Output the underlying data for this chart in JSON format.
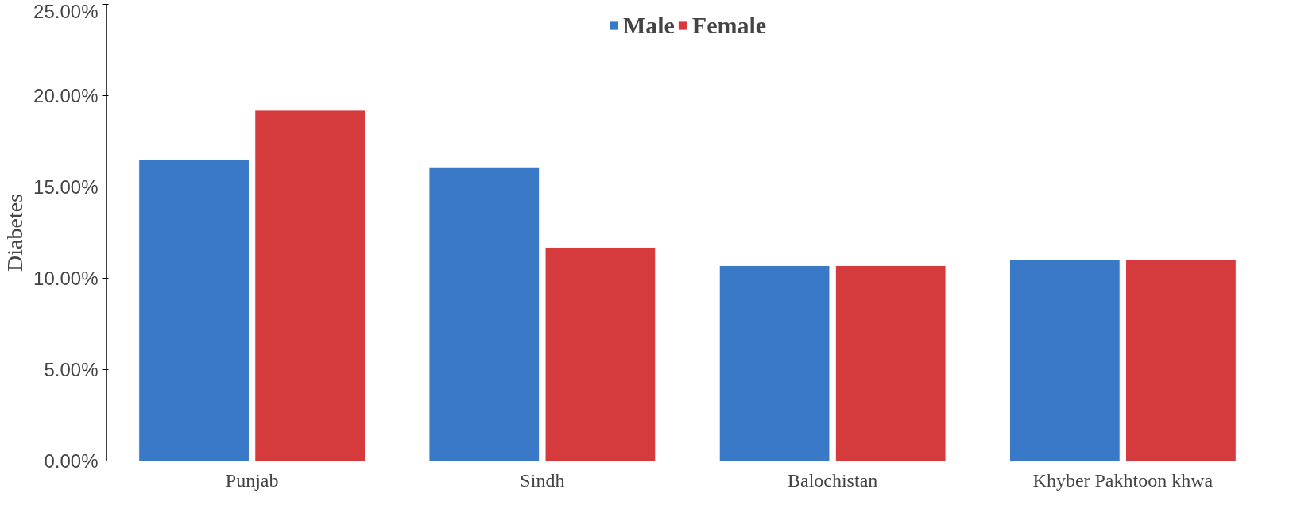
{
  "chart_data": {
    "type": "bar",
    "ylabel": "Diabetes",
    "categories": [
      "Punjab",
      "Sindh",
      "Balochistan",
      "Khyber Pakhtoon khwa"
    ],
    "series": [
      {
        "name": "Male",
        "color": "#3a78c8",
        "values": [
          16.5,
          16.1,
          10.7,
          11.0
        ]
      },
      {
        "name": "Female",
        "color": "#d53a3c",
        "values": [
          19.2,
          11.7,
          10.7,
          11.0
        ]
      }
    ],
    "ylim": [
      0,
      25
    ],
    "yticks": [
      {
        "value": 0,
        "label": "0.00%"
      },
      {
        "value": 5,
        "label": "5.00%"
      },
      {
        "value": 10,
        "label": "10.00%"
      },
      {
        "value": 15,
        "label": "15.00%"
      },
      {
        "value": 20,
        "label": "20.00%"
      },
      {
        "value": 25,
        "label": "25.00%"
      }
    ],
    "grid": false,
    "legend": "top"
  }
}
